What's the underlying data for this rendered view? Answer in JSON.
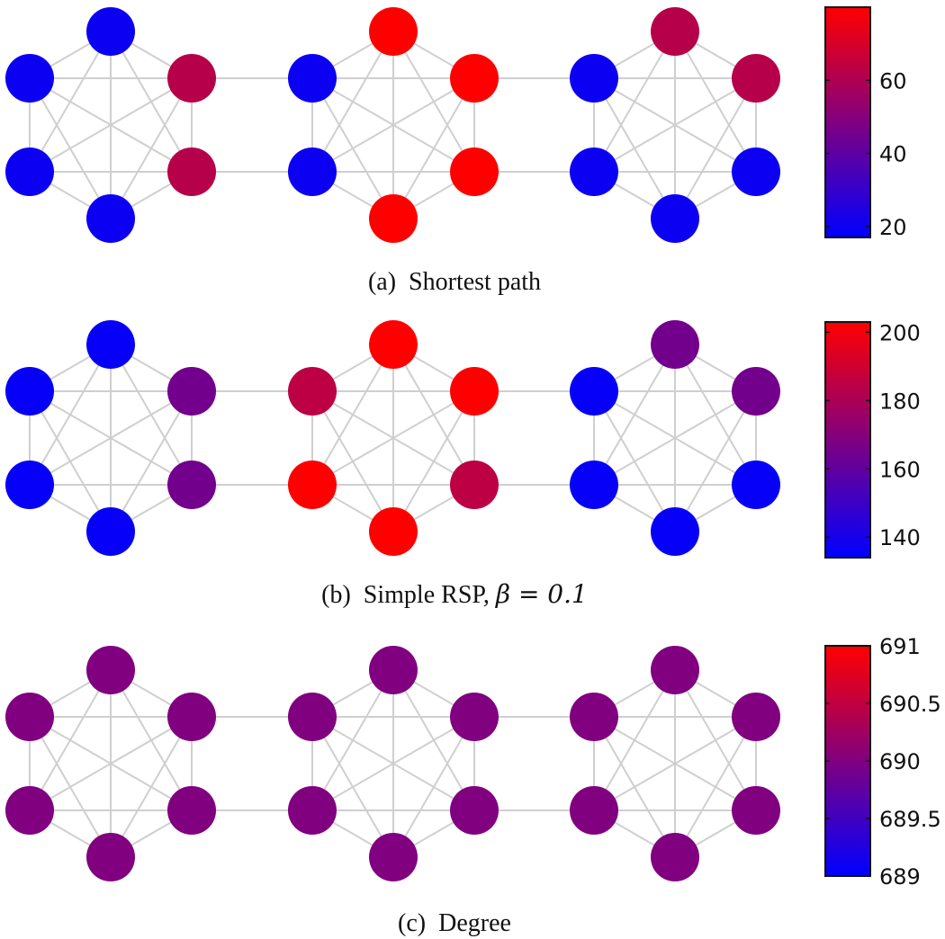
{
  "colors": {
    "low": "#0000ff",
    "high": "#ff0000",
    "edge": "#cfcfcf"
  },
  "panels": [
    {
      "id": "a",
      "caption": "(a)  Shortest path",
      "node_values": [
        [
          20,
          62,
          62,
          20,
          20,
          20
        ],
        [
          80,
          80,
          80,
          80,
          20,
          20
        ],
        [
          62,
          62,
          20,
          20,
          20,
          20
        ]
      ],
      "colorbar": {
        "min": 17,
        "max": 80,
        "ticks": [
          20,
          40,
          60
        ],
        "tick_labels": [
          "20",
          "40",
          "60"
        ]
      }
    },
    {
      "id": "b",
      "caption": "(b)  Simple RSP, ",
      "caption_math": "β = 0.1",
      "node_values": [
        [
          136,
          165,
          165,
          136,
          136,
          136
        ],
        [
          203,
          203,
          185,
          203,
          203,
          185
        ],
        [
          165,
          165,
          136,
          136,
          136,
          136
        ]
      ],
      "colorbar": {
        "min": 134,
        "max": 203,
        "ticks": [
          140,
          160,
          180,
          200
        ],
        "tick_labels": [
          "140",
          "160",
          "180",
          "200"
        ]
      }
    },
    {
      "id": "c",
      "caption": "(c)  Degree",
      "node_values": [
        [
          690,
          690,
          690,
          690,
          690,
          690
        ],
        [
          690,
          690,
          690,
          690,
          690,
          690
        ],
        [
          690,
          690,
          690,
          690,
          690,
          690
        ]
      ],
      "colorbar": {
        "min": 689,
        "max": 691,
        "ticks": [
          689,
          689.5,
          690,
          690.5,
          691
        ],
        "tick_labels": [
          "689",
          "689.5",
          "690",
          "690.5",
          "691"
        ]
      }
    }
  ]
}
